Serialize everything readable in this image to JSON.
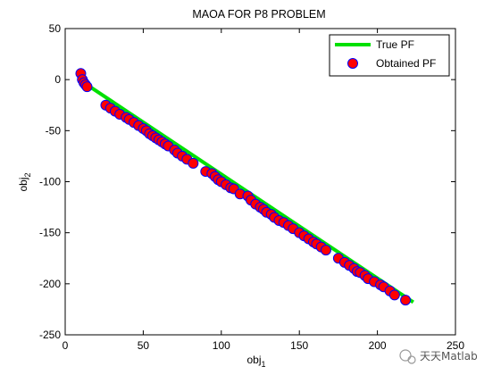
{
  "chart_data": {
    "type": "scatter",
    "title": "MAOA FOR P8 PROBLEM",
    "xlabel": "obj",
    "xlabel_sub": "1",
    "ylabel": "obj",
    "ylabel_sub": "2",
    "xlim": [
      0,
      250
    ],
    "ylim": [
      -250,
      50
    ],
    "xticks": [
      0,
      50,
      100,
      150,
      200,
      250
    ],
    "yticks": [
      50,
      0,
      -50,
      -100,
      -150,
      -200,
      -250
    ],
    "grid": false,
    "legend_position": "top-right",
    "series": [
      {
        "name": "True PF",
        "kind": "line",
        "color": "#00e000",
        "x": [
          10,
          223
        ],
        "y": [
          -1,
          -218
        ]
      },
      {
        "name": "Obtained PF",
        "kind": "scatter",
        "color": "#ff0000",
        "edge": "#0000ff",
        "x": [
          10,
          11,
          12,
          13,
          14,
          26,
          29,
          32,
          35,
          39,
          41,
          44,
          47,
          50,
          52,
          54,
          56,
          58,
          60,
          62,
          64,
          66,
          70,
          72,
          75,
          78,
          82,
          90,
          94,
          96,
          98,
          100,
          103,
          106,
          108,
          112,
          117,
          119,
          122,
          125,
          127,
          129,
          132,
          134,
          137,
          140,
          143,
          146,
          150,
          153,
          156,
          159,
          161,
          164,
          167,
          175,
          179,
          182,
          185,
          187,
          189,
          192,
          194,
          198,
          202,
          204,
          208,
          211,
          218
        ],
        "y": [
          6,
          0,
          -3,
          -5,
          -7,
          -25,
          -28,
          -31,
          -34,
          -37,
          -39,
          -42,
          -45,
          -48,
          -50,
          -53,
          -55,
          -57,
          -59,
          -61,
          -63,
          -65,
          -69,
          -72,
          -75,
          -78,
          -82,
          -90,
          -92,
          -95,
          -98,
          -100,
          -103,
          -106,
          -107,
          -112,
          -114,
          -118,
          -122,
          -125,
          -127,
          -130,
          -132,
          -135,
          -138,
          -140,
          -143,
          -146,
          -150,
          -153,
          -156,
          -159,
          -161,
          -164,
          -167,
          -175,
          -179,
          -182,
          -185,
          -188,
          -189,
          -192,
          -195,
          -198,
          -201,
          -203,
          -207,
          -211,
          -216
        ]
      }
    ],
    "watermark": "天天Matlab"
  }
}
